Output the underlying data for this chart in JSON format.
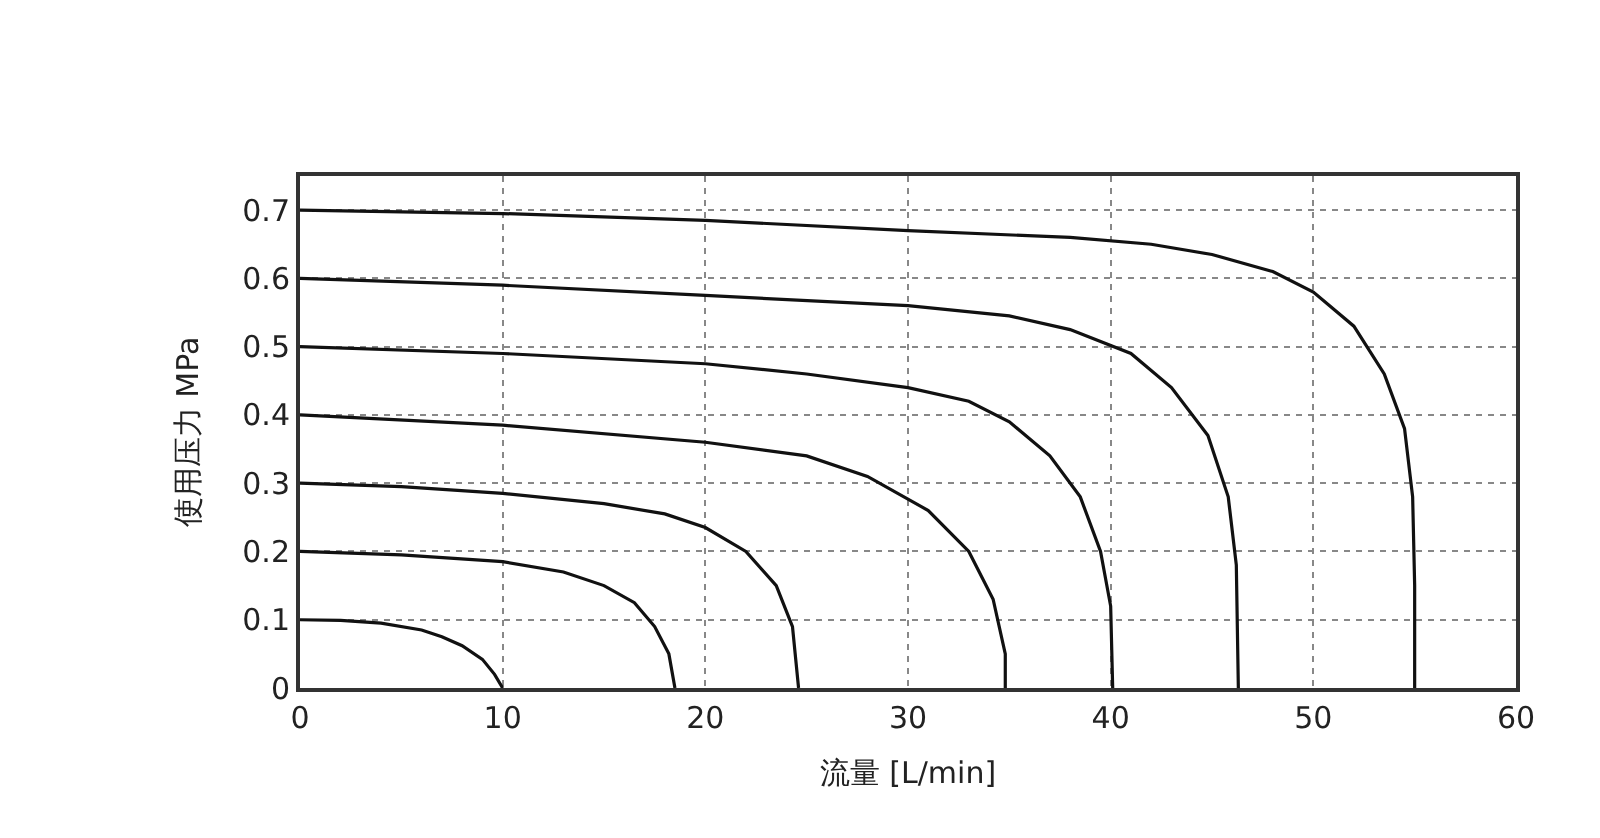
{
  "chart_data": {
    "type": "line",
    "xlabel": "流量 [L/min]",
    "ylabel": "使用压力 MPa",
    "xlim": [
      0,
      60
    ],
    "ylim": [
      0,
      0.75
    ],
    "xticks": [
      0,
      10,
      20,
      30,
      40,
      50,
      60
    ],
    "yticks": [
      0,
      0.1,
      0.2,
      0.3,
      0.4,
      0.5,
      0.6,
      0.7
    ],
    "grid": true,
    "marker": "none",
    "line_style": "solid",
    "series": [
      {
        "color": "#111111",
        "x": [
          0,
          2,
          4,
          6,
          7,
          8,
          9,
          9.6,
          10
        ],
        "values": [
          0.1,
          0.099,
          0.095,
          0.085,
          0.075,
          0.062,
          0.042,
          0.02,
          0
        ]
      },
      {
        "color": "#111111",
        "x": [
          0,
          5,
          10,
          13,
          15,
          16.5,
          17.5,
          18.2,
          18.5
        ],
        "values": [
          0.2,
          0.195,
          0.185,
          0.17,
          0.15,
          0.125,
          0.09,
          0.05,
          0
        ]
      },
      {
        "color": "#111111",
        "x": [
          0,
          5,
          10,
          15,
          18,
          20,
          22,
          23.5,
          24.3,
          24.6
        ],
        "values": [
          0.3,
          0.295,
          0.285,
          0.27,
          0.255,
          0.235,
          0.2,
          0.15,
          0.09,
          0
        ]
      },
      {
        "color": "#111111",
        "x": [
          0,
          10,
          20,
          25,
          28,
          31,
          33,
          34.2,
          34.8,
          34.8
        ],
        "values": [
          0.4,
          0.385,
          0.36,
          0.34,
          0.31,
          0.26,
          0.2,
          0.13,
          0.05,
          0
        ]
      },
      {
        "color": "#111111",
        "x": [
          0,
          10,
          20,
          25,
          30,
          33,
          35,
          37,
          38.5,
          39.5,
          40,
          40.1
        ],
        "values": [
          0.5,
          0.49,
          0.475,
          0.46,
          0.44,
          0.42,
          0.39,
          0.34,
          0.28,
          0.2,
          0.12,
          0
        ]
      },
      {
        "color": "#111111",
        "x": [
          0,
          10,
          20,
          30,
          35,
          38,
          41,
          43,
          44.8,
          45.8,
          46.2,
          46.3
        ],
        "values": [
          0.6,
          0.59,
          0.575,
          0.56,
          0.545,
          0.525,
          0.49,
          0.44,
          0.37,
          0.28,
          0.18,
          0
        ]
      },
      {
        "color": "#111111",
        "x": [
          0,
          10,
          20,
          30,
          38,
          42,
          45,
          48,
          50,
          52,
          53.5,
          54.5,
          54.9,
          55,
          55
        ],
        "values": [
          0.7,
          0.695,
          0.685,
          0.67,
          0.66,
          0.65,
          0.635,
          0.61,
          0.58,
          0.53,
          0.46,
          0.38,
          0.28,
          0.15,
          0
        ]
      }
    ]
  }
}
